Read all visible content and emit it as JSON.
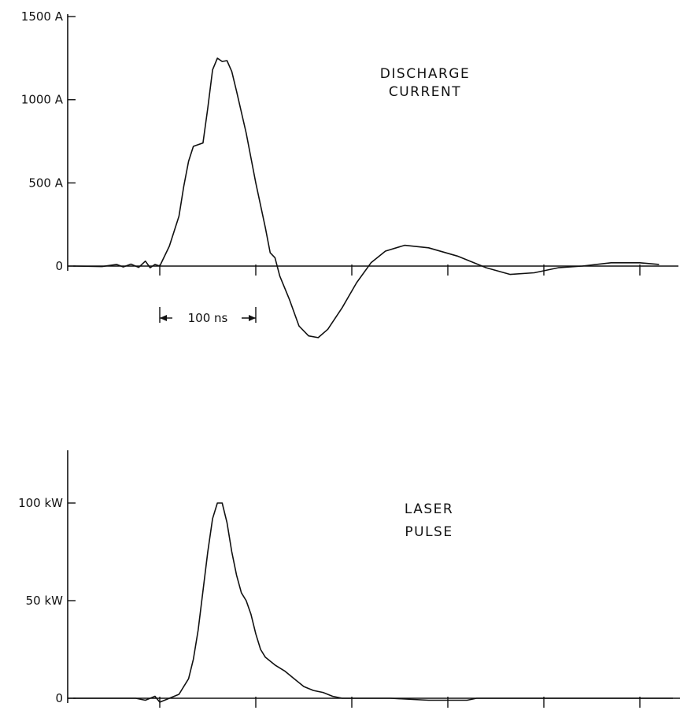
{
  "chart_data": [
    {
      "type": "line",
      "title": "",
      "xlabel": "",
      "ylabel": "",
      "annotation": [
        "DISCHARGE",
        "CURRENT"
      ],
      "yticks": [
        {
          "value": 0,
          "label": "0"
        },
        {
          "value": 500,
          "label": "500 A"
        },
        {
          "value": 1000,
          "label": "1000 A"
        },
        {
          "value": 1500,
          "label": "1500 A"
        }
      ],
      "ylim": [
        -450,
        1500
      ],
      "xlim": [
        -90,
        560
      ],
      "x_unit": "ns",
      "xtick_step": 100,
      "scale_bar_label": "100 ns",
      "grid": false,
      "series": [
        {
          "values": [
            [
              -90,
              0
            ],
            [
              -60,
              -3
            ],
            [
              -45,
              10
            ],
            [
              -38,
              -5
            ],
            [
              -30,
              12
            ],
            [
              -22,
              -8
            ],
            [
              -15,
              30
            ],
            [
              -10,
              -10
            ],
            [
              -5,
              10
            ],
            [
              0,
              0
            ],
            [
              10,
              120
            ],
            [
              20,
              300
            ],
            [
              25,
              480
            ],
            [
              30,
              630
            ],
            [
              35,
              720
            ],
            [
              40,
              730
            ],
            [
              45,
              740
            ],
            [
              50,
              950
            ],
            [
              55,
              1180
            ],
            [
              60,
              1250
            ],
            [
              65,
              1230
            ],
            [
              70,
              1235
            ],
            [
              75,
              1170
            ],
            [
              80,
              1050
            ],
            [
              90,
              800
            ],
            [
              100,
              500
            ],
            [
              110,
              230
            ],
            [
              115,
              80
            ],
            [
              120,
              50
            ],
            [
              125,
              -60
            ],
            [
              135,
              -200
            ],
            [
              145,
              -360
            ],
            [
              155,
              -420
            ],
            [
              165,
              -430
            ],
            [
              175,
              -380
            ],
            [
              190,
              -250
            ],
            [
              205,
              -100
            ],
            [
              220,
              20
            ],
            [
              235,
              90
            ],
            [
              255,
              125
            ],
            [
              280,
              110
            ],
            [
              310,
              60
            ],
            [
              340,
              -10
            ],
            [
              365,
              -50
            ],
            [
              390,
              -40
            ],
            [
              415,
              -10
            ],
            [
              440,
              0
            ],
            [
              470,
              20
            ],
            [
              500,
              20
            ],
            [
              520,
              10
            ]
          ]
        }
      ]
    },
    {
      "type": "line",
      "title": "",
      "xlabel": "",
      "ylabel": "",
      "annotation": [
        "LASER",
        "PULSE"
      ],
      "yticks": [
        {
          "value": 0,
          "label": "0"
        },
        {
          "value": 50,
          "label": "50 kW"
        },
        {
          "value": 100,
          "label": "100 kW"
        }
      ],
      "ylim": [
        0,
        125
      ],
      "xlim": [
        -90,
        560
      ],
      "x_unit": "ns",
      "xtick_step": 100,
      "grid": false,
      "series": [
        {
          "values": [
            [
              -90,
              0
            ],
            [
              -25,
              0
            ],
            [
              -15,
              -1
            ],
            [
              -5,
              1
            ],
            [
              0,
              -2
            ],
            [
              10,
              0
            ],
            [
              20,
              2
            ],
            [
              30,
              10
            ],
            [
              35,
              20
            ],
            [
              40,
              35
            ],
            [
              45,
              55
            ],
            [
              50,
              75
            ],
            [
              55,
              92
            ],
            [
              60,
              100
            ],
            [
              65,
              100
            ],
            [
              70,
              90
            ],
            [
              75,
              75
            ],
            [
              80,
              63
            ],
            [
              85,
              54
            ],
            [
              90,
              50
            ],
            [
              95,
              43
            ],
            [
              100,
              33
            ],
            [
              105,
              25
            ],
            [
              110,
              21
            ],
            [
              120,
              17
            ],
            [
              130,
              14
            ],
            [
              140,
              10
            ],
            [
              150,
              6
            ],
            [
              160,
              4
            ],
            [
              170,
              3
            ],
            [
              180,
              1
            ],
            [
              190,
              0
            ],
            [
              240,
              0
            ],
            [
              280,
              -1
            ],
            [
              320,
              -1
            ],
            [
              330,
              0
            ],
            [
              520,
              0
            ],
            [
              560,
              0
            ]
          ]
        }
      ]
    }
  ]
}
